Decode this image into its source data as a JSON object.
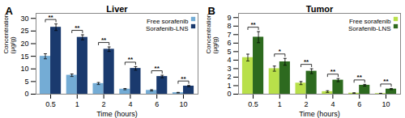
{
  "chart_data": [
    {
      "type": "bar",
      "title": "Liver",
      "panel_label": "A",
      "xlabel": "Time (hours)",
      "ylabel": "Concentration\n(μg/g)",
      "categories": [
        "0.5",
        "1",
        "2",
        "4",
        "6",
        "10"
      ],
      "series": [
        {
          "name": "Free sorafenib",
          "color": "#74acd5",
          "values": [
            15.0,
            7.5,
            4.2,
            2.0,
            1.5,
            0.6
          ],
          "errors": [
            1.0,
            0.5,
            0.4,
            0.25,
            0.25,
            0.1
          ]
        },
        {
          "name": "Sorafenib-LNS",
          "color": "#1a3a6e",
          "values": [
            26.5,
            22.5,
            17.8,
            10.2,
            7.0,
            3.2
          ],
          "errors": [
            1.3,
            1.0,
            0.9,
            0.7,
            0.5,
            0.25
          ]
        }
      ],
      "significance": [
        "**",
        "**",
        "**",
        "**",
        "**",
        "**"
      ],
      "ylim": [
        0,
        32
      ],
      "yticks": [
        0,
        5,
        10,
        15,
        20,
        25,
        30
      ],
      "legend": "upper right"
    },
    {
      "type": "bar",
      "title": "Tumor",
      "panel_label": "B",
      "xlabel": "Time (hours)",
      "ylabel": "Concentration\n(μg/g)",
      "categories": [
        "0.5",
        "1",
        "2",
        "4",
        "6",
        "10"
      ],
      "series": [
        {
          "name": "Free sorafenib",
          "color": "#b8e04a",
          "values": [
            4.3,
            3.0,
            1.3,
            0.3,
            0.12,
            0.07
          ],
          "errors": [
            0.4,
            0.3,
            0.18,
            0.1,
            0.04,
            0.03
          ]
        },
        {
          "name": "Sorafenib-LNS",
          "color": "#2d6a1f",
          "values": [
            6.7,
            3.8,
            2.7,
            1.65,
            1.05,
            0.6
          ],
          "errors": [
            0.65,
            0.4,
            0.28,
            0.18,
            0.1,
            0.07
          ]
        }
      ],
      "significance": [
        "**",
        "*",
        "**",
        "**",
        "**",
        "**"
      ],
      "ylim": [
        0,
        9.5
      ],
      "yticks": [
        0,
        1,
        2,
        3,
        4,
        5,
        6,
        7,
        8,
        9
      ],
      "legend": "upper right"
    }
  ]
}
